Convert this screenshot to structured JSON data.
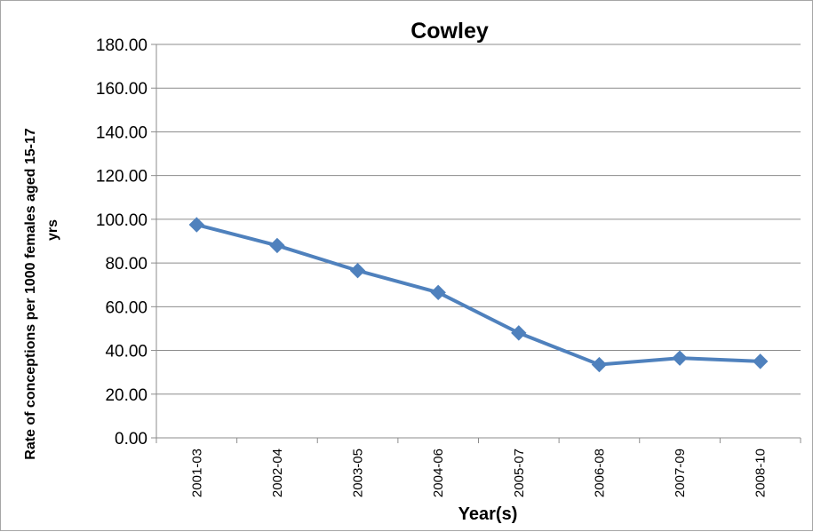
{
  "chart_data": {
    "type": "line",
    "title": "Cowley",
    "xlabel": "Year(s)",
    "ylabel": "Rate of conceptions per 1000 females aged 15-17 yrs",
    "ylabel_lines": [
      "Rate of conceptions per 1000 females aged 15-17",
      "yrs"
    ],
    "categories": [
      "2001-03",
      "2002-04",
      "2003-05",
      "2004-06",
      "2005-07",
      "2006-08",
      "2007-09",
      "2008-10"
    ],
    "series": [
      {
        "values": [
          97.5,
          88.0,
          76.5,
          66.5,
          48.0,
          33.5,
          36.5,
          35.0
        ],
        "color": "#4f81bd",
        "marker": "diamond"
      }
    ],
    "ylim": [
      0,
      180
    ],
    "yticks": [
      0,
      20,
      40,
      60,
      80,
      100,
      120,
      140,
      160,
      180
    ],
    "ytick_labels": [
      "0.00",
      "20.00",
      "40.00",
      "60.00",
      "80.00",
      "100.00",
      "120.00",
      "140.00",
      "160.00",
      "180.00"
    ],
    "grid": true,
    "legend": "none"
  }
}
